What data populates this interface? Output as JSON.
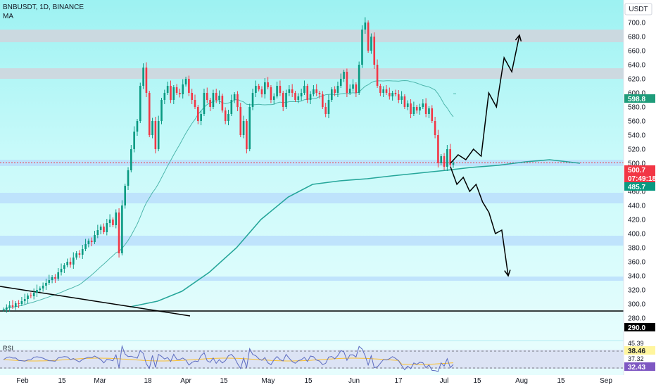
{
  "header": {
    "symbol": "BNBUSDT, 1D, BINANCE",
    "indicator": "MA",
    "currency": "USDT"
  },
  "price_axis": {
    "ticks": [
      "700.0",
      "680.0",
      "660.0",
      "640.0",
      "620.0",
      "600.0",
      "580.0",
      "560.0",
      "540.0",
      "520.0",
      "500.0",
      "480.0",
      "460.0",
      "440.0",
      "420.0",
      "400.0",
      "380.0",
      "360.0",
      "340.0",
      "320.0",
      "300.0",
      "280.0"
    ],
    "badges": [
      {
        "label": "598.8",
        "value": 598.8,
        "color": "#1e9c7a",
        "text_color": "#ffffff"
      },
      {
        "label": "500.7",
        "value": 500.7,
        "color": "#f23645",
        "text_color": "#ffffff"
      },
      {
        "label": "07:49:18",
        "value": 493.5,
        "color": "#f23645",
        "text_color": "#ffffff"
      },
      {
        "label": "485.7",
        "value": 485.7,
        "color": "#089981",
        "text_color": "#ffffff"
      },
      {
        "label": "290.0",
        "value": 290.0,
        "color": "#000000",
        "text_color": "#ffffff"
      }
    ]
  },
  "time_axis": {
    "labels": [
      "Feb",
      "15",
      "Mar",
      "18",
      "Apr",
      "15",
      "May",
      "15",
      "Jun",
      "17",
      "Jul",
      "15",
      "Aug",
      "15",
      "Sep"
    ]
  },
  "rsi_panel": {
    "title": "RSI",
    "ticks": [
      "45.39",
      "37.32"
    ],
    "badges": [
      {
        "label": "38.46",
        "color": "#fff59d",
        "text_color": "#131722"
      },
      {
        "label": "32.43",
        "color": "#7e57c2",
        "text_color": "#ffffff"
      }
    ]
  },
  "chart_data": {
    "type": "candlestick",
    "title": "BNBUSDT, 1D, BINANCE",
    "ylabel": "USDT",
    "ylim": [
      275,
      720
    ],
    "x_categories": [
      "Feb",
      "15",
      "Mar",
      "18",
      "Apr",
      "15",
      "May",
      "15",
      "Jun",
      "17",
      "Jul",
      "15",
      "Aug",
      "15",
      "Sep"
    ],
    "last_price": 500.7,
    "zones": [
      {
        "low": 672,
        "high": 690,
        "color": "#d1d4dc"
      },
      {
        "low": 620,
        "high": 635,
        "color": "#d1d4dc"
      },
      {
        "low": 496,
        "high": 505,
        "color": "#bbdefb"
      },
      {
        "low": 443,
        "high": 458,
        "color": "#bbdefb"
      },
      {
        "low": 383,
        "high": 397,
        "color": "#bbdefb"
      },
      {
        "low": 333,
        "high": 339,
        "color": "#bbdefb"
      }
    ],
    "horizontal_line": 290.0,
    "close_series": [
      292,
      295,
      298,
      296,
      301,
      300,
      304,
      307,
      312,
      311,
      316,
      320,
      322,
      326,
      330,
      334,
      338,
      336,
      345,
      350,
      355,
      360,
      356,
      366,
      372,
      370,
      378,
      385,
      390,
      388,
      398,
      405,
      410,
      402,
      415,
      420,
      412,
      430,
      372,
      440,
      468,
      490,
      520,
      545,
      560,
      610,
      636,
      600,
      540,
      560,
      520,
      560,
      590,
      600,
      610,
      590,
      608,
      600,
      598,
      612,
      620,
      600,
      590,
      580,
      560,
      570,
      600,
      590,
      580,
      600,
      590,
      596,
      575,
      560,
      570,
      590,
      598,
      580,
      540,
      560,
      520,
      580,
      600,
      610,
      605,
      598,
      615,
      608,
      590,
      595,
      610,
      600,
      580,
      600,
      605,
      600,
      590,
      595,
      600,
      610,
      590,
      598,
      605,
      600,
      598,
      580,
      570,
      590,
      605,
      600,
      610,
      620,
      630,
      600,
      606,
      612,
      600,
      640,
      690,
      700,
      660,
      680,
      640,
      610,
      600,
      605,
      600,
      595,
      600,
      598,
      590,
      595,
      580,
      585,
      570,
      580,
      575,
      580,
      585,
      570,
      578,
      560,
      540,
      500,
      510,
      495,
      520,
      498,
      500.7
    ],
    "ma_slow_points": [
      [
        0,
        296
      ],
      [
        35,
        304
      ],
      [
        70,
        318
      ],
      [
        105,
        345
      ],
      [
        140,
        380
      ],
      [
        175,
        420
      ],
      [
        210,
        452
      ],
      [
        245,
        470
      ],
      [
        280,
        475
      ],
      [
        315,
        478
      ],
      [
        350,
        482
      ],
      [
        385,
        486
      ],
      [
        420,
        490
      ],
      [
        455,
        494
      ],
      [
        490,
        497
      ],
      [
        525,
        502
      ],
      [
        560,
        505
      ],
      [
        600,
        500
      ]
    ],
    "scenario_up": [
      500,
      512,
      505,
      520,
      510,
      600,
      580,
      650,
      630,
      682
    ],
    "scenario_down": [
      495,
      470,
      480,
      460,
      470,
      445,
      430,
      400,
      405,
      340
    ],
    "rsi_levels": [
      45.39,
      37.32
    ],
    "rsi_last": 32.43,
    "grid": false
  }
}
